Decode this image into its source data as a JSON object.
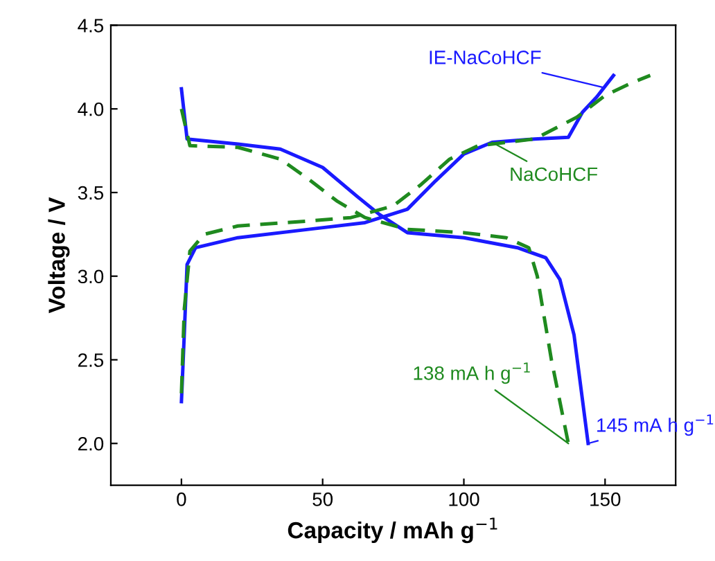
{
  "chart_data": {
    "type": "line",
    "xlabel": "Capacity / mAh g$^{−1}$",
    "ylabel": "Voltage / V",
    "xlim": [
      -25,
      175
    ],
    "ylim": [
      1.75,
      4.5
    ],
    "xticks": [
      0,
      50,
      100,
      150
    ],
    "yticks": [
      {
        "value": 2,
        "label": "2.0"
      },
      {
        "value": 2.5,
        "label": "2.5"
      },
      {
        "value": 3,
        "label": "3.0"
      },
      {
        "value": 3.5,
        "label": "3.5"
      },
      {
        "value": 4,
        "label": "4.0"
      },
      {
        "value": 4.5,
        "label": "4.5"
      }
    ],
    "grid": false,
    "legend": false,
    "marker": "none",
    "series": [
      {
        "color": "#1a1aff",
        "line_style": "solid",
        "x": [
          0,
          1,
          2,
          5,
          20,
          45,
          65,
          80,
          90,
          100,
          110,
          125,
          137,
          142,
          147,
          153,
          null,
          0,
          2,
          20,
          35,
          50,
          62,
          70,
          80,
          100,
          119,
          129,
          134,
          139,
          144
        ],
        "values": [
          2.25,
          2.65,
          3.07,
          3.17,
          3.23,
          3.28,
          3.32,
          3.4,
          3.57,
          3.73,
          3.8,
          3.82,
          3.83,
          3.98,
          4.07,
          4.2,
          null,
          4.12,
          3.82,
          3.79,
          3.76,
          3.65,
          3.48,
          3.37,
          3.26,
          3.23,
          3.17,
          3.11,
          2.98,
          2.65,
          2.0
        ]
      },
      {
        "color": "#1f8a1f",
        "line_style": "dashed",
        "x": [
          0,
          1,
          3,
          8,
          20,
          45,
          60,
          75,
          85,
          95,
          105,
          125,
          140,
          150,
          160,
          166,
          null,
          0,
          3,
          20,
          35,
          45,
          55,
          65,
          80,
          100,
          115,
          123,
          126,
          131,
          137
        ],
        "values": [
          2.3,
          2.8,
          3.15,
          3.25,
          3.3,
          3.33,
          3.35,
          3.42,
          3.55,
          3.7,
          3.78,
          3.82,
          3.95,
          4.08,
          4.16,
          4.2,
          null,
          4.0,
          3.78,
          3.77,
          3.7,
          3.58,
          3.45,
          3.35,
          3.28,
          3.26,
          3.23,
          3.17,
          3.0,
          2.5,
          2.0
        ]
      }
    ],
    "annotations": [
      {
        "text": "IE-NaCoHCF",
        "x": 149,
        "y": 4.13
      },
      {
        "text": "NaCoHCF",
        "x": 110,
        "y": 3.8
      },
      {
        "text": "138 mA h g$^{−1}$",
        "x": 137,
        "y": 2.0
      },
      {
        "text": "145 mA h g$^{−1}$",
        "x": 144,
        "y": 2.0
      }
    ]
  }
}
